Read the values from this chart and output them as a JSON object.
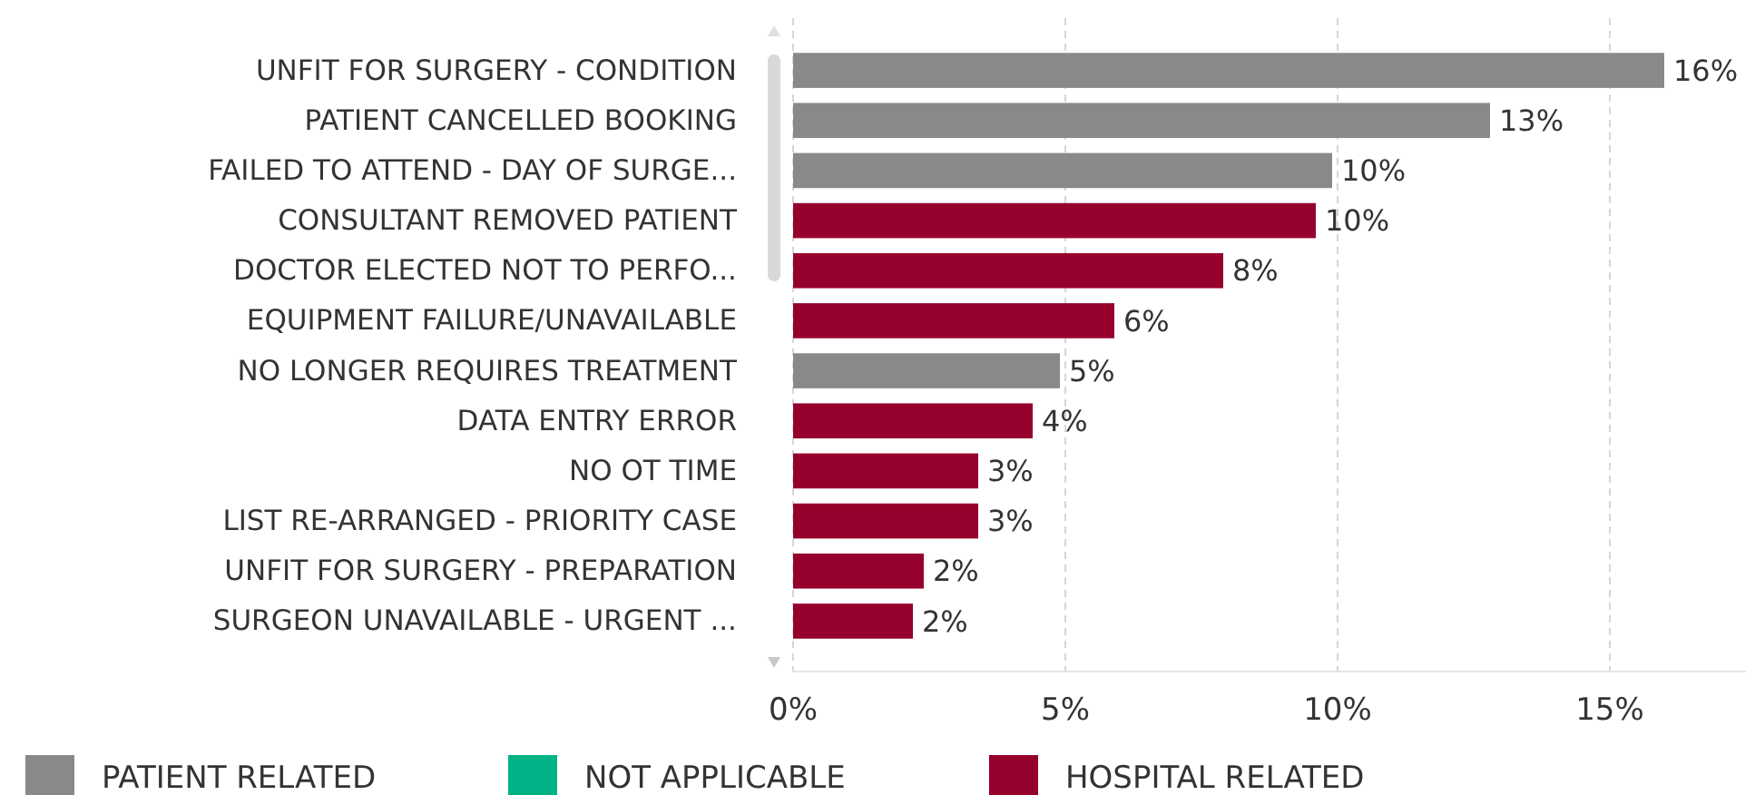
{
  "chart_data": {
    "type": "bar",
    "orientation": "horizontal",
    "categories": [
      "UNFIT FOR SURGERY - CONDITION",
      "PATIENT CANCELLED BOOKING",
      "FAILED TO ATTEND - DAY OF SURGE...",
      "CONSULTANT REMOVED PATIENT",
      "DOCTOR ELECTED NOT TO PERFO...",
      "EQUIPMENT FAILURE/UNAVAILABLE",
      "NO LONGER REQUIRES TREATMENT",
      "DATA ENTRY ERROR",
      "NO OT TIME",
      "LIST RE-ARRANGED - PRIORITY CASE",
      "UNFIT FOR SURGERY - PREPARATION",
      "SURGEON UNAVAILABLE - URGENT ..."
    ],
    "series": [
      {
        "name": "PATIENT RELATED",
        "color": "#898989",
        "values": [
          16.0,
          12.8,
          9.9,
          null,
          null,
          null,
          4.9,
          null,
          null,
          null,
          null,
          null
        ],
        "value_labels": [
          "16%",
          "13%",
          "10%",
          null,
          null,
          null,
          "5%",
          null,
          null,
          null,
          null,
          null
        ]
      },
      {
        "name": "NOT APPLICABLE",
        "color": "#00b386",
        "values": [
          null,
          null,
          null,
          null,
          null,
          null,
          null,
          null,
          null,
          null,
          null,
          null
        ]
      },
      {
        "name": "HOSPITAL RELATED",
        "color": "#96002d",
        "values": [
          null,
          null,
          null,
          9.6,
          7.9,
          5.9,
          null,
          4.4,
          3.4,
          3.4,
          2.4,
          2.2
        ],
        "value_labels": [
          null,
          null,
          null,
          "10%",
          "8%",
          "6%",
          null,
          "4%",
          "3%",
          "3%",
          "2%",
          "2%"
        ]
      }
    ],
    "xlim": [
      0,
      17.5
    ],
    "xticks": [
      {
        "value": 0,
        "label": "0%"
      },
      {
        "value": 5,
        "label": "5%"
      },
      {
        "value": 10,
        "label": "10%"
      },
      {
        "value": 15,
        "label": "15%"
      }
    ],
    "grid": "x",
    "legend": "bottom"
  }
}
